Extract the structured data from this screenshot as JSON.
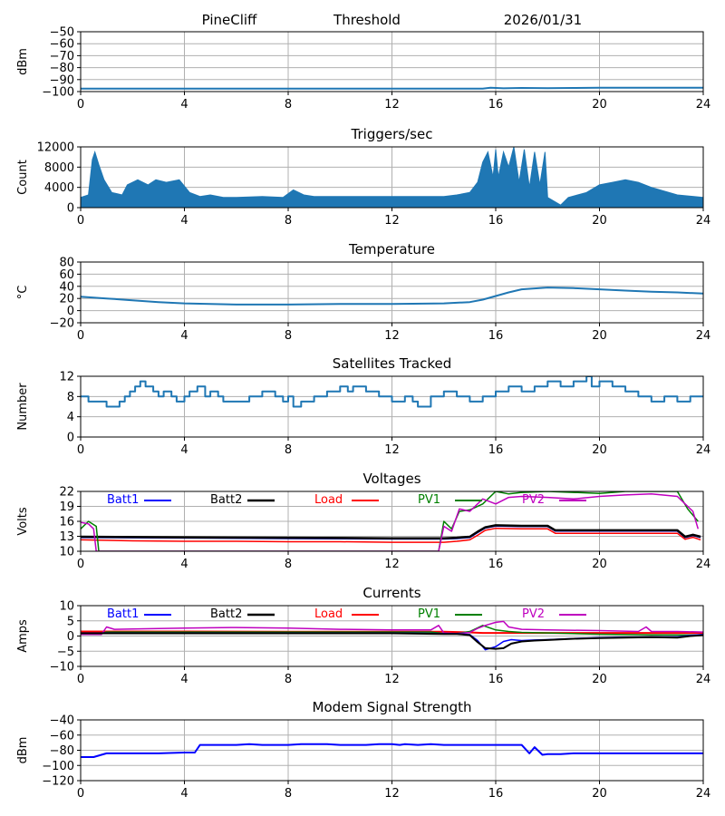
{
  "header": {
    "station": "PineCliff",
    "mode": "Threshold",
    "date": "2026/01/31"
  },
  "colors": {
    "default": "#1f77b4",
    "Batt1": "#0000ff",
    "Batt2": "#000000",
    "Load": "#ff0000",
    "PV1": "#008000",
    "PV2": "#bf00bf",
    "modem": "#0000ff"
  },
  "chart_data": [
    {
      "id": "noise",
      "type": "line",
      "title": "",
      "ylabel": "dBm",
      "xlim": [
        0,
        24
      ],
      "ylim": [
        -100,
        -50
      ],
      "xticks": [
        0,
        4,
        8,
        12,
        16,
        20,
        24
      ],
      "yticks": [
        -100,
        -90,
        -80,
        -70,
        -60,
        -50
      ],
      "series": [
        {
          "name": "noise",
          "color": "default",
          "width": 2,
          "x": [
            0,
            4,
            8,
            12,
            15.5,
            15.8,
            16.3,
            17,
            18,
            19,
            20,
            22,
            24
          ],
          "y": [
            -97.5,
            -97.5,
            -97.5,
            -97.5,
            -97.5,
            -96.8,
            -97.3,
            -97.0,
            -97.2,
            -97.0,
            -96.8,
            -96.8,
            -96.8
          ]
        }
      ]
    },
    {
      "id": "triggers",
      "type": "area",
      "title": "Triggers/sec",
      "ylabel": "Count",
      "xlim": [
        0,
        24
      ],
      "ylim": [
        0,
        12000
      ],
      "xticks": [
        0,
        4,
        8,
        12,
        16,
        20,
        24
      ],
      "yticks": [
        0,
        4000,
        8000,
        12000
      ],
      "series": [
        {
          "name": "triggers",
          "color": "default",
          "x": [
            0,
            0.3,
            0.45,
            0.55,
            0.7,
            0.9,
            1.2,
            1.6,
            1.8,
            2.2,
            2.6,
            2.9,
            3.3,
            3.8,
            4.2,
            4.6,
            5,
            5.5,
            6,
            7,
            7.8,
            8.2,
            8.6,
            9,
            10,
            11,
            12,
            13,
            14,
            14.5,
            15,
            15.3,
            15.5,
            15.7,
            15.9,
            16,
            16.1,
            16.3,
            16.5,
            16.7,
            16.9,
            17.1,
            17.3,
            17.5,
            17.7,
            17.9,
            18,
            18.5,
            18.8,
            19.5,
            20,
            20.5,
            21,
            21.5,
            22,
            23,
            24
          ],
          "y": [
            2000,
            2500,
            9500,
            11000,
            8500,
            5500,
            3000,
            2500,
            4500,
            5500,
            4500,
            5500,
            5000,
            5500,
            3000,
            2200,
            2500,
            2000,
            2000,
            2200,
            2000,
            3500,
            2500,
            2200,
            2200,
            2200,
            2200,
            2200,
            2200,
            2500,
            3000,
            5000,
            9000,
            11000,
            6000,
            11500,
            6000,
            11000,
            8000,
            12000,
            5000,
            11500,
            4000,
            11000,
            4500,
            11000,
            2000,
            500,
            2000,
            3000,
            4500,
            5000,
            5500,
            5000,
            4000,
            2500,
            2000
          ]
        }
      ]
    },
    {
      "id": "temperature",
      "type": "line",
      "title": "Temperature",
      "ylabel": "°C",
      "xlim": [
        0,
        24
      ],
      "ylim": [
        -20,
        80
      ],
      "xticks": [
        0,
        4,
        8,
        12,
        16,
        20,
        24
      ],
      "yticks": [
        -20,
        0,
        20,
        40,
        60,
        80
      ],
      "series": [
        {
          "name": "temperature",
          "color": "default",
          "width": 2,
          "x": [
            0,
            1,
            2,
            3,
            4,
            5,
            6,
            8,
            10,
            12,
            14,
            15,
            15.5,
            16,
            16.5,
            17,
            18,
            19,
            20,
            21,
            22,
            23,
            24
          ],
          "y": [
            23,
            20,
            17,
            14,
            12,
            11,
            10,
            10,
            11,
            11,
            12,
            14,
            18,
            24,
            30,
            35,
            38,
            37,
            35,
            33,
            31,
            30,
            28
          ]
        }
      ]
    },
    {
      "id": "satellites",
      "type": "step",
      "title": "Satellites Tracked",
      "ylabel": "Number",
      "xlim": [
        0,
        24
      ],
      "ylim": [
        0,
        12
      ],
      "xticks": [
        0,
        4,
        8,
        12,
        16,
        20,
        24
      ],
      "yticks": [
        0,
        4,
        8,
        12
      ],
      "series": [
        {
          "name": "satellites",
          "color": "default",
          "width": 2,
          "x": [
            0,
            0.3,
            1,
            1.5,
            1.7,
            1.9,
            2.1,
            2.3,
            2.5,
            2.8,
            3,
            3.2,
            3.5,
            3.7,
            4,
            4.2,
            4.5,
            4.8,
            5,
            5.3,
            5.5,
            6,
            6.5,
            7,
            7.5,
            7.8,
            8,
            8.2,
            8.5,
            9,
            9.5,
            10,
            10.3,
            10.5,
            11,
            11.5,
            12,
            12.5,
            12.8,
            13,
            13.5,
            14,
            14.5,
            15,
            15.5,
            16,
            16.5,
            17,
            17.5,
            18,
            18.5,
            19,
            19.5,
            19.7,
            20,
            20.5,
            21,
            21.5,
            22,
            22.5,
            23,
            23.5,
            24
          ],
          "y": [
            8,
            7,
            6,
            7,
            8,
            9,
            10,
            11,
            10,
            9,
            8,
            9,
            8,
            7,
            8,
            9,
            10,
            8,
            9,
            8,
            7,
            7,
            8,
            9,
            8,
            7,
            8,
            6,
            7,
            8,
            9,
            10,
            9,
            10,
            9,
            8,
            7,
            8,
            7,
            6,
            8,
            9,
            8,
            7,
            8,
            9,
            10,
            9,
            10,
            11,
            10,
            11,
            12,
            10,
            11,
            10,
            9,
            8,
            7,
            8,
            7,
            8,
            8
          ]
        }
      ]
    },
    {
      "id": "voltages",
      "type": "line",
      "title": "Voltages",
      "ylabel": "Volts",
      "xlim": [
        0,
        24
      ],
      "ylim": [
        10,
        22
      ],
      "xticks": [
        0,
        4,
        8,
        12,
        16,
        20,
        24
      ],
      "yticks": [
        10,
        13,
        16,
        19,
        22
      ],
      "legend": [
        "Batt1",
        "Batt2",
        "Load",
        "PV1",
        "PV2"
      ],
      "series": [
        {
          "name": "Batt1",
          "color": "Batt1",
          "width": 2,
          "x": [
            0,
            4,
            8,
            12,
            14,
            14.5,
            15,
            15.3,
            15.6,
            16,
            17,
            18,
            18.3,
            20,
            23,
            23.3,
            23.6,
            23.9
          ],
          "y": [
            12.8,
            12.7,
            12.6,
            12.5,
            12.5,
            12.6,
            12.8,
            13.8,
            14.7,
            15.1,
            15.0,
            15.0,
            14.1,
            14.1,
            14.1,
            12.8,
            13.2,
            12.8
          ]
        },
        {
          "name": "Batt2",
          "color": "Batt2",
          "width": 2.5,
          "x": [
            0,
            4,
            8,
            12,
            14,
            14.5,
            15,
            15.3,
            15.6,
            16,
            17,
            18,
            18.3,
            20,
            23,
            23.3,
            23.6,
            23.9
          ],
          "y": [
            12.9,
            12.8,
            12.7,
            12.6,
            12.6,
            12.7,
            12.9,
            13.9,
            14.8,
            15.2,
            15.1,
            15.1,
            14.2,
            14.2,
            14.2,
            12.9,
            13.3,
            12.9
          ]
        },
        {
          "name": "Load",
          "color": "Load",
          "width": 1.5,
          "x": [
            0,
            2,
            4,
            6,
            8,
            10,
            12,
            14,
            14.5,
            15,
            15.3,
            15.6,
            16,
            17,
            18,
            18.3,
            20,
            23,
            23.3,
            23.6,
            23.9
          ],
          "y": [
            12.3,
            12.1,
            12.0,
            12.0,
            11.9,
            11.9,
            11.8,
            11.8,
            12.0,
            12.3,
            13.2,
            14.2,
            14.6,
            14.5,
            14.5,
            13.6,
            13.6,
            13.6,
            12.4,
            12.8,
            12.3
          ]
        },
        {
          "name": "PV1",
          "color": "PV1",
          "width": 1.5,
          "x": [
            0,
            0.3,
            0.6,
            0.7,
            13.8,
            14,
            14.3,
            14.6,
            15,
            15.5,
            16,
            16.5,
            17,
            18,
            19,
            20,
            21,
            22,
            23,
            23.4,
            23.8
          ],
          "y": [
            14.5,
            16.0,
            15.0,
            10.0,
            10.0,
            16.0,
            14.5,
            18.0,
            18.3,
            19.5,
            22.0,
            21.5,
            21.8,
            22.0,
            21.8,
            21.6,
            22.0,
            22.0,
            22.0,
            18.5,
            16.0
          ]
        },
        {
          "name": "PV2",
          "color": "PV2",
          "width": 1.5,
          "x": [
            0,
            0.3,
            0.5,
            0.6,
            13.8,
            14,
            14.3,
            14.6,
            15,
            15.5,
            16,
            16.5,
            17,
            18,
            19,
            20,
            21,
            22,
            23,
            23.3,
            23.6,
            23.8
          ],
          "y": [
            15.8,
            15.5,
            14.5,
            10.0,
            10.0,
            15.0,
            14.0,
            18.5,
            18.0,
            20.5,
            19.5,
            20.8,
            21.0,
            20.8,
            20.5,
            21.0,
            21.3,
            21.5,
            21.0,
            19.5,
            18.0,
            14.5
          ]
        }
      ]
    },
    {
      "id": "currents",
      "type": "line",
      "title": "Currents",
      "ylabel": "Amps",
      "xlim": [
        0,
        24
      ],
      "ylim": [
        -10,
        10
      ],
      "xticks": [
        0,
        4,
        8,
        12,
        16,
        20,
        24
      ],
      "yticks": [
        -10,
        -5,
        0,
        5,
        10
      ],
      "legend": [
        "Batt1",
        "Batt2",
        "Load",
        "PV1",
        "PV2"
      ],
      "series": [
        {
          "name": "Load",
          "color": "Load",
          "width": 2,
          "x": [
            0,
            4,
            8,
            12,
            14,
            15,
            15.5,
            16,
            17,
            18,
            20,
            22,
            24
          ],
          "y": [
            1.5,
            1.5,
            1.4,
            1.4,
            1.4,
            1.2,
            1.0,
            1.0,
            1.0,
            1.0,
            1.0,
            1.0,
            1.0
          ]
        },
        {
          "name": "PV1",
          "color": "PV1",
          "width": 1.5,
          "x": [
            0,
            0.8,
            1,
            4,
            8,
            12,
            13.5,
            14,
            14.5,
            15,
            15.5,
            16,
            16.5,
            17,
            18,
            20,
            22,
            24
          ],
          "y": [
            0.8,
            0.8,
            1.3,
            1.3,
            1.3,
            1.3,
            1.3,
            0.8,
            0.8,
            1.5,
            3.5,
            2.0,
            1.5,
            1.2,
            1.0,
            0.6,
            0.4,
            0.3
          ]
        },
        {
          "name": "PV2",
          "color": "PV2",
          "width": 1.5,
          "x": [
            0,
            0.8,
            1,
            1.3,
            2,
            4,
            6,
            8,
            10,
            12,
            13.5,
            13.8,
            14,
            14.5,
            15,
            15.3,
            15.6,
            16,
            16.3,
            16.5,
            17,
            18,
            20,
            21.5,
            21.8,
            22,
            23,
            24
          ],
          "y": [
            0.5,
            0.5,
            3.0,
            2.2,
            2.3,
            2.6,
            2.8,
            2.6,
            2.2,
            2.0,
            2.0,
            3.5,
            1.0,
            0.8,
            1.2,
            2.5,
            3.5,
            4.5,
            4.8,
            3.0,
            2.2,
            2.0,
            1.8,
            1.5,
            3.0,
            1.5,
            1.5,
            1.3
          ]
        },
        {
          "name": "Batt1",
          "color": "Batt1",
          "width": 1.5,
          "x": [
            0,
            12,
            14,
            14.5,
            15,
            15.3,
            15.6,
            16,
            16.3,
            16.6,
            17,
            17.5,
            18,
            19,
            20,
            21,
            22,
            23,
            23.5,
            24
          ],
          "y": [
            1.0,
            1.0,
            0.8,
            0.8,
            0.5,
            -1.5,
            -4.5,
            -3.5,
            -1.8,
            -1.2,
            -1.5,
            -1.3,
            -1.2,
            -0.8,
            -0.5,
            -0.4,
            -0.3,
            -0.3,
            0.2,
            0.5
          ]
        },
        {
          "name": "Batt2",
          "color": "Batt2",
          "width": 2,
          "x": [
            0,
            12,
            14,
            14.5,
            15,
            15.3,
            15.6,
            16,
            16.3,
            16.6,
            17,
            17.5,
            18,
            19,
            20,
            21,
            22,
            23,
            23.5,
            24
          ],
          "y": [
            0.9,
            0.9,
            0.7,
            0.7,
            0.3,
            -2.0,
            -4.0,
            -4.2,
            -4.0,
            -2.5,
            -1.8,
            -1.5,
            -1.3,
            -0.9,
            -0.7,
            -0.5,
            -0.4,
            -0.5,
            0.0,
            0.3
          ]
        }
      ]
    },
    {
      "id": "modem",
      "type": "line",
      "title": "Modem Signal Strength",
      "ylabel": "dBm",
      "xlim": [
        0,
        24
      ],
      "ylim": [
        -120,
        -40
      ],
      "xticks": [
        0,
        4,
        8,
        12,
        16,
        20,
        24
      ],
      "yticks": [
        -120,
        -100,
        -80,
        -60,
        -40
      ],
      "series": [
        {
          "name": "modem",
          "color": "modem",
          "width": 2,
          "x": [
            0,
            0.5,
            0.8,
            1,
            2,
            3,
            4,
            4.4,
            4.6,
            5,
            6,
            6.5,
            7,
            8,
            8.5,
            9,
            9.5,
            10,
            11,
            11.5,
            12,
            12.3,
            12.5,
            13,
            13.5,
            14,
            15,
            15.5,
            16,
            16.5,
            17,
            17.3,
            17.5,
            17.8,
            18,
            18.5,
            19,
            20,
            22,
            24
          ],
          "y": [
            -89,
            -89,
            -86,
            -84,
            -84,
            -84,
            -83,
            -83,
            -73,
            -73,
            -73,
            -72,
            -73,
            -73,
            -72,
            -72,
            -72,
            -73,
            -73,
            -72,
            -72,
            -73,
            -72,
            -73,
            -72,
            -73,
            -73,
            -73,
            -73,
            -73,
            -73,
            -84,
            -76,
            -86,
            -85,
            -85,
            -84,
            -84,
            -84,
            -84
          ]
        }
      ]
    }
  ]
}
